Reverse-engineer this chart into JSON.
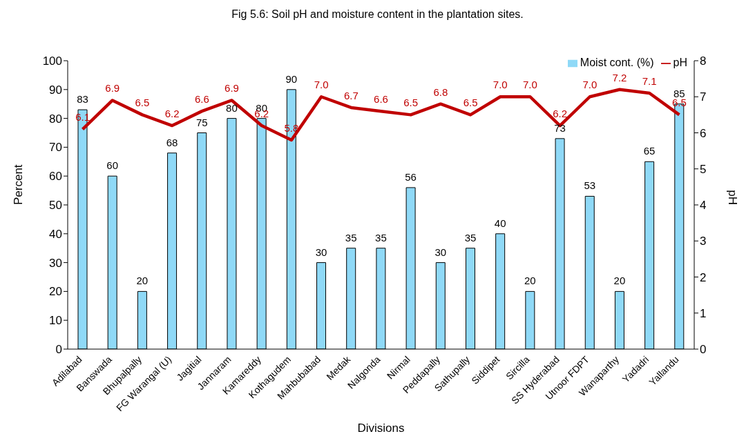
{
  "chart_data": {
    "type": "bar",
    "title": "Fig 5.6: Soil pH and moisture content in the plantation sites.",
    "xlabel": "Divisions",
    "ylabel": "Percent",
    "y2label": "pH",
    "categories": [
      "Adilabad",
      "Banswada",
      "Bhupalpally",
      "FG Warangal (U)",
      "Jagitial",
      "Jannaram",
      "Kamareddy",
      "Kothagudem",
      "Mahbubabad",
      "Medak",
      "Nalgonda",
      "Nirmal",
      "Peddapally",
      "Sathupally",
      "Siddipet",
      "Sircilla",
      "SS Hyderabad",
      "Utnoor FDPT",
      "Wanaparthy",
      "Yadadri",
      "Yallandu"
    ],
    "series": [
      {
        "name": "Moist cont. (%)",
        "color": "#8fd9f7",
        "values": [
          83,
          60,
          20,
          68,
          75,
          80,
          80,
          90,
          30,
          35,
          35,
          56,
          30,
          35,
          40,
          20,
          73,
          53,
          20,
          65,
          85
        ]
      },
      {
        "name": "pH",
        "type": "line",
        "axis": "y2",
        "color": "#c00000",
        "values": [
          6.1,
          6.9,
          6.5,
          6.2,
          6.6,
          6.9,
          6.2,
          5.8,
          7.0,
          6.7,
          6.6,
          6.5,
          6.8,
          6.5,
          7.0,
          7.0,
          6.2,
          7.0,
          7.2,
          7.1,
          6.5
        ],
        "value_labels": [
          "6.1",
          "6.9",
          "6.5",
          "6.2",
          "6.6",
          "6.9",
          "6.2",
          "5.8",
          "7.0",
          "6.7",
          "6.6",
          "6.5",
          "6.8",
          "6.5",
          "7.0",
          "7.0",
          "6.2",
          "7.0",
          "7.2",
          "7.1",
          "6.5"
        ]
      }
    ],
    "ylim": [
      0,
      100
    ],
    "yticks": [
      0,
      10,
      20,
      30,
      40,
      50,
      60,
      70,
      80,
      90,
      100
    ],
    "y2lim": [
      0,
      8
    ],
    "y2ticks": [
      0,
      1,
      2,
      3,
      4,
      5,
      6,
      7,
      8
    ],
    "data_labels": true,
    "legend": "top right",
    "marker": "none"
  }
}
